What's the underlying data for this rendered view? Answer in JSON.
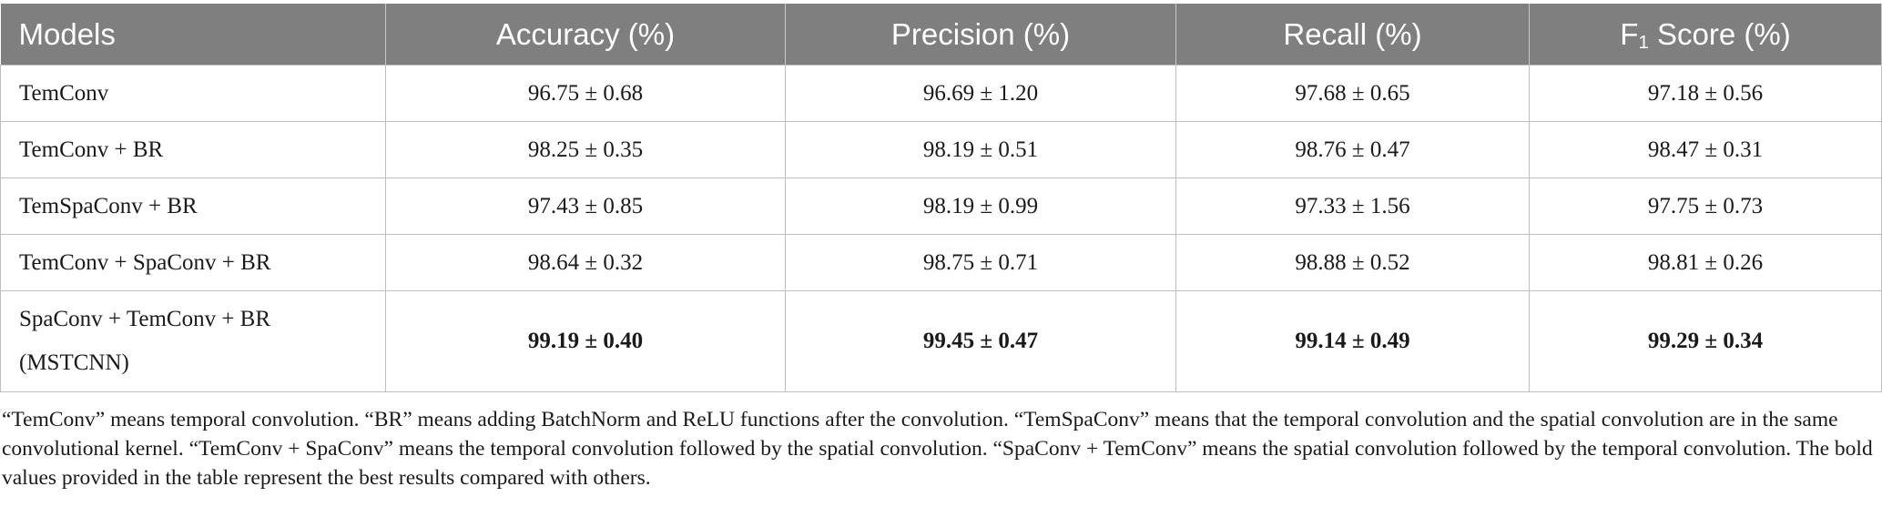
{
  "table": {
    "headers": {
      "models": "Models",
      "accuracy": "Accuracy (%)",
      "precision": "Precision (%)",
      "recall": "Recall (%)",
      "f1_prefix": "F",
      "f1_sub": "1",
      "f1_suffix": " Score (%)"
    },
    "rows": [
      {
        "model": "TemConv",
        "model_line2": "",
        "accuracy": "96.75 ± 0.68",
        "precision": "96.69 ± 1.20",
        "recall": "97.68 ± 0.65",
        "f1": "97.18 ± 0.56",
        "bold": false
      },
      {
        "model": "TemConv + BR",
        "model_line2": "",
        "accuracy": "98.25 ± 0.35",
        "precision": "98.19 ± 0.51",
        "recall": "98.76 ± 0.47",
        "f1": "98.47 ± 0.31",
        "bold": false
      },
      {
        "model": "TemSpaConv + BR",
        "model_line2": "",
        "accuracy": "97.43 ± 0.85",
        "precision": "98.19 ± 0.99",
        "recall": "97.33 ± 1.56",
        "f1": "97.75 ± 0.73",
        "bold": false
      },
      {
        "model": "TemConv + SpaConv + BR",
        "model_line2": "",
        "accuracy": "98.64 ± 0.32",
        "precision": "98.75 ± 0.71",
        "recall": "98.88 ± 0.52",
        "f1": "98.81 ± 0.26",
        "bold": false
      },
      {
        "model": "SpaConv + TemConv + BR",
        "model_line2": "(MSTCNN)",
        "accuracy": "99.19 ± 0.40",
        "precision": "99.45 ± 0.47",
        "recall": "99.14 ± 0.49",
        "f1": "99.29 ± 0.34",
        "bold": true
      }
    ]
  },
  "footnote": "“TemConv” means temporal convolution. “BR” means adding BatchNorm and ReLU functions after the convolution. “TemSpaConv” means that the temporal convolution and the spatial convolution are in the same convolutional kernel. “TemConv + SpaConv” means the temporal convolution followed by the spatial convolution. “SpaConv + TemConv” means the spatial convolution followed by the temporal convolution. The bold values provided in the table represent the best results compared with others."
}
